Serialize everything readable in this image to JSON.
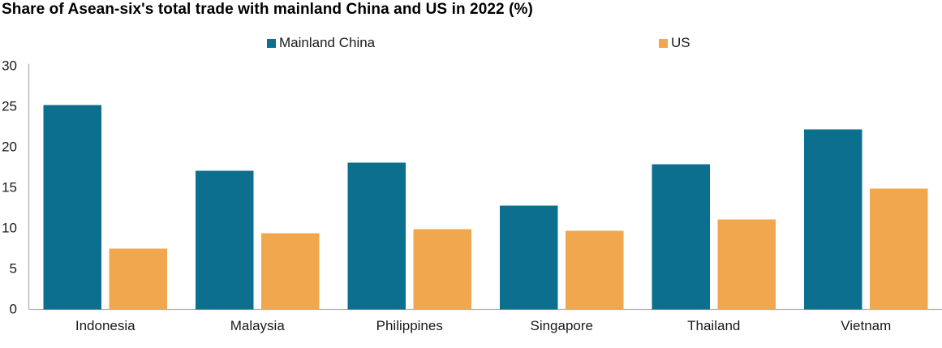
{
  "chart_data": {
    "type": "bar",
    "title": "Share of Asean-six's total trade with mainland China and US in 2022 (%)",
    "categories": [
      "Indonesia",
      "Malaysia",
      "Philippines",
      "Singapore",
      "Thailand",
      "Vietnam"
    ],
    "series": [
      {
        "name": "Mainland China",
        "color": "#0b6f8d",
        "values": [
          25.2,
          17.1,
          18.1,
          12.8,
          17.9,
          22.2
        ]
      },
      {
        "name": "US",
        "color": "#f1a74e",
        "values": [
          7.5,
          9.4,
          9.9,
          9.7,
          11.1,
          14.9
        ]
      }
    ],
    "ylim": [
      0,
      30
    ],
    "yticks": [
      0,
      5,
      10,
      15,
      20,
      25,
      30
    ],
    "ylabel": "",
    "xlabel": "",
    "grid": false,
    "legend_position": "top",
    "axis_color": "#b3b3b3",
    "text_color": "#1a1a1a"
  }
}
